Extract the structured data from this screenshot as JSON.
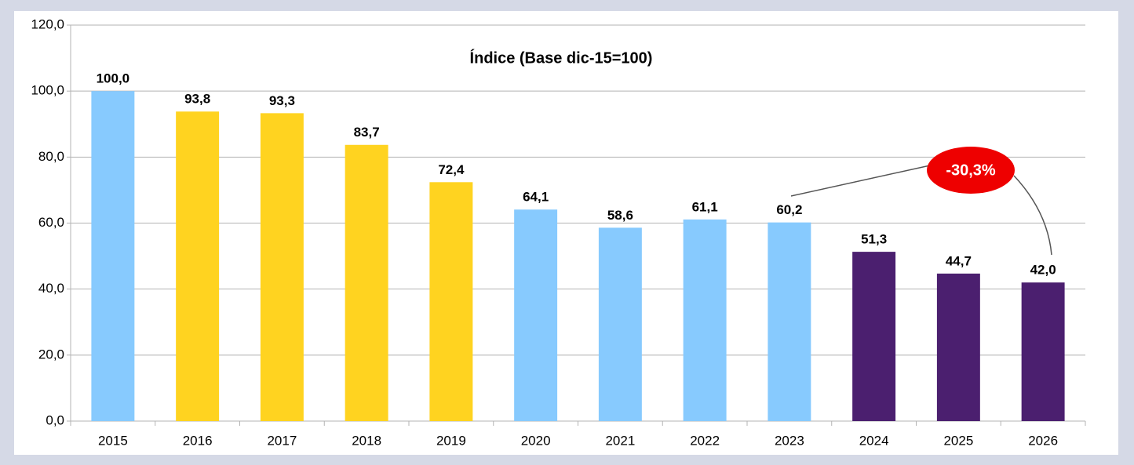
{
  "chart_data": {
    "type": "bar",
    "title": "Índice (Base dic-15=100)",
    "categories": [
      "2015",
      "2016",
      "2017",
      "2018",
      "2019",
      "2020",
      "2021",
      "2022",
      "2023",
      "2024",
      "2025",
      "2026"
    ],
    "values": [
      100.0,
      93.8,
      93.3,
      83.7,
      72.4,
      64.1,
      58.6,
      61.1,
      60.2,
      51.3,
      44.7,
      42.0
    ],
    "value_labels": [
      "100,0",
      "93,8",
      "93,3",
      "83,7",
      "72,4",
      "64,1",
      "58,6",
      "61,1",
      "60,2",
      "51,3",
      "44,7",
      "42,0"
    ],
    "colors": [
      "#87cafe",
      "#ffd320",
      "#ffd320",
      "#ffd320",
      "#ffd320",
      "#87cafe",
      "#87cafe",
      "#87cafe",
      "#87cafe",
      "#4b1f6f",
      "#4b1f6f",
      "#4b1f6f"
    ],
    "ylim": [
      0,
      120
    ],
    "yticks": [
      {
        "value": 0,
        "label": "0,0"
      },
      {
        "value": 20,
        "label": "20,0"
      },
      {
        "value": 40,
        "label": "40,0"
      },
      {
        "value": 60,
        "label": "60,0"
      },
      {
        "value": 80,
        "label": "80,0"
      },
      {
        "value": 100,
        "label": "100,0"
      },
      {
        "value": 120,
        "label": "120,0"
      }
    ],
    "grid": true,
    "annotation": "-30,3%"
  }
}
